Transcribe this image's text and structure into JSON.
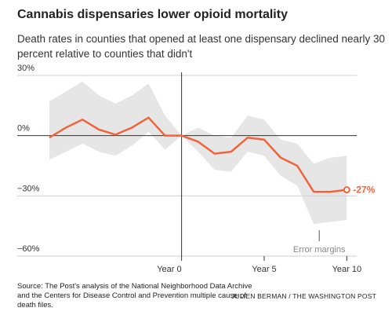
{
  "chart_data": {
    "type": "line",
    "title": "Cannabis dispensaries lower opioid mortality",
    "subtitle": "Death rates in counties that opened at least one dispensary declined nearly 30 percent relative to counties that didn't",
    "x": [
      -8,
      -7,
      -6,
      -5,
      -4,
      -3,
      -2,
      -1,
      0,
      1,
      2,
      3,
      4,
      5,
      6,
      7,
      8,
      9,
      10
    ],
    "series": [
      {
        "color": "#f0643c",
        "values": [
          -1,
          4,
          8,
          3,
          0.5,
          4,
          9,
          0,
          0,
          -3,
          -9,
          -8,
          -1,
          -2,
          -11,
          -15,
          -28,
          -28,
          -27
        ],
        "value_labels": [
          null,
          null,
          null,
          null,
          null,
          null,
          null,
          null,
          null,
          null,
          null,
          null,
          null,
          null,
          null,
          null,
          null,
          null,
          "-27%"
        ]
      }
    ],
    "band": {
      "label": "Error margins",
      "color": "#e6e6e6",
      "upper": [
        17,
        22,
        27,
        20,
        16,
        20,
        26,
        10,
        0,
        4,
        0,
        -1,
        10,
        8,
        -2,
        -4,
        -14,
        -11,
        -10
      ],
      "lower": [
        -12,
        -8,
        -4,
        -8,
        -10,
        -5,
        2,
        -7,
        0,
        -8,
        -17,
        -18,
        -8,
        -10,
        -20,
        -25,
        -44,
        -43,
        -42
      ]
    },
    "xlim": [
      -8,
      10.6
    ],
    "ylim": [
      -60,
      30
    ],
    "xticks": [
      {
        "value": 0,
        "label": "Year 0"
      },
      {
        "value": 5,
        "label": "Year 5"
      },
      {
        "value": 10,
        "label": "Year 10"
      }
    ],
    "yticks": [
      {
        "value": 30,
        "label": "30%"
      },
      {
        "value": 0,
        "label": "0%"
      },
      {
        "value": -30,
        "label": "−30%"
      },
      {
        "value": -60,
        "label": "−60%"
      }
    ],
    "grid": true,
    "source": "Source: The Post's analysis of the National Neighborhood Data Archive and the Centers for Disease Control and Prevention multiple cause of death files.",
    "credit": "JULIEN BERMAN / THE WASHINGTON POST"
  }
}
